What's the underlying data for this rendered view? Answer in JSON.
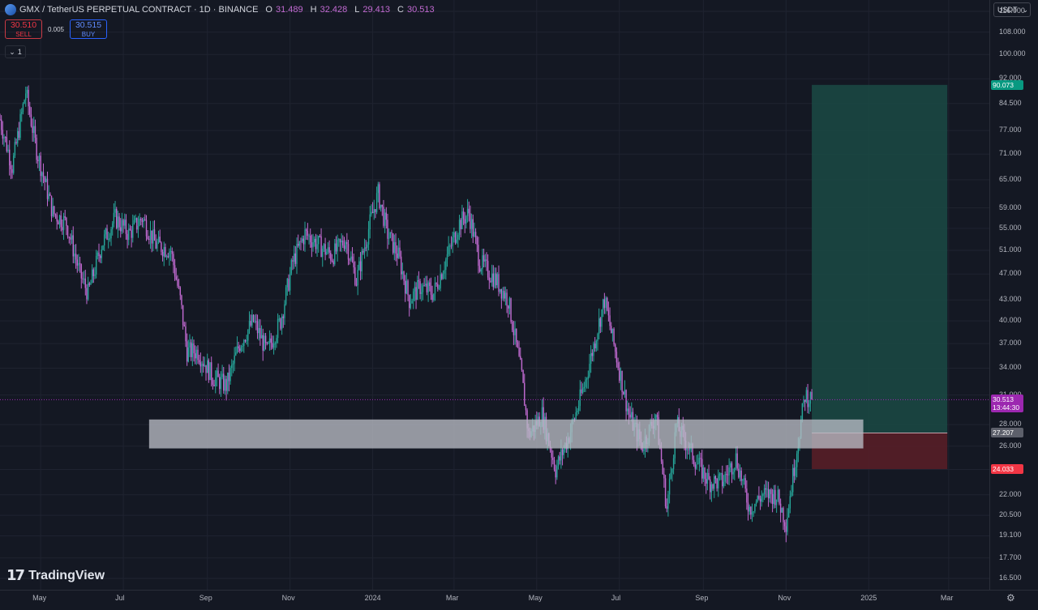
{
  "header": {
    "symbol": "GMX / TetherUS PERPETUAL CONTRACT · 1D · BINANCE",
    "o_label": "O",
    "o": "31.489",
    "h_label": "H",
    "h": "32.428",
    "l_label": "L",
    "l": "29.413",
    "c_label": "C",
    "c": "30.513"
  },
  "trade": {
    "sell_price": "30.510",
    "sell_label": "SELL",
    "spread": "0.005",
    "buy_price": "30.515",
    "buy_label": "BUY"
  },
  "layers": {
    "count": "1"
  },
  "currency": {
    "label": "USDT",
    "icon": "chevron-down-icon"
  },
  "colors": {
    "background": "#141823",
    "up": "#26a69a",
    "down": "#c16ad1",
    "profit_zone": "#1a4a44",
    "loss_zone": "#5a1e27",
    "target_tag": "#089981",
    "stop_tag": "#f23645",
    "last_tag": "#9c27b0"
  },
  "price_axis": [
    "116.000",
    "108.000",
    "100.000",
    "92.000",
    "84.500",
    "77.000",
    "71.000",
    "65.000",
    "59.000",
    "55.000",
    "51.000",
    "47.000",
    "43.000",
    "40.000",
    "37.000",
    "34.000",
    "31.000",
    "28.000",
    "26.000",
    "24.000",
    "22.000",
    "20.500",
    "19.100",
    "17.700",
    "16.500"
  ],
  "time_axis": [
    "May",
    "Jul",
    "Sep",
    "Nov",
    "2024",
    "Mar",
    "May",
    "Jul",
    "Sep",
    "Nov",
    "2025",
    "Mar"
  ],
  "price_tags": {
    "target": "90.073",
    "last": "30.513",
    "countdown": "13:44:30",
    "entry": "27.207",
    "stop": "24.033"
  },
  "logo": {
    "text": "TradingView"
  },
  "chart_data": {
    "type": "candlestick",
    "scale": "log",
    "ylim": [
      16.5,
      116
    ],
    "x_range": [
      "2023-04-01",
      "2025-03-31"
    ],
    "last_price": 30.513,
    "support_zone": {
      "from": "2023-07-20",
      "to": "2024-12-28",
      "low": 25.8,
      "high": 28.5
    },
    "long_position": {
      "start": "2024-11-20",
      "end": "2025-02-28",
      "entry": 27.207,
      "target": 90.073,
      "stop": 24.033
    },
    "anchors": [
      [
        "2023-04-01",
        80
      ],
      [
        "2023-04-10",
        68
      ],
      [
        "2023-04-20",
        88
      ],
      [
        "2023-04-28",
        72
      ],
      [
        "2023-05-10",
        58
      ],
      [
        "2023-05-20",
        56
      ],
      [
        "2023-05-30",
        47
      ],
      [
        "2023-06-05",
        44
      ],
      [
        "2023-06-15",
        52
      ],
      [
        "2023-06-25",
        57
      ],
      [
        "2023-07-05",
        54
      ],
      [
        "2023-07-15",
        57
      ],
      [
        "2023-07-25",
        52
      ],
      [
        "2023-08-05",
        51
      ],
      [
        "2023-08-12",
        43
      ],
      [
        "2023-08-17",
        36
      ],
      [
        "2023-08-25",
        36
      ],
      [
        "2023-09-05",
        33
      ],
      [
        "2023-09-15",
        32
      ],
      [
        "2023-09-25",
        37
      ],
      [
        "2023-10-05",
        40
      ],
      [
        "2023-10-15",
        36
      ],
      [
        "2023-10-25",
        40
      ],
      [
        "2023-11-03",
        49
      ],
      [
        "2023-11-12",
        54
      ],
      [
        "2023-11-22",
        52
      ],
      [
        "2023-12-02",
        50
      ],
      [
        "2023-12-12",
        53
      ],
      [
        "2023-12-20",
        46
      ],
      [
        "2023-12-30",
        56
      ],
      [
        "2024-01-05",
        62
      ],
      [
        "2024-01-12",
        54
      ],
      [
        "2024-01-20",
        50
      ],
      [
        "2024-01-28",
        43
      ],
      [
        "2024-02-05",
        45
      ],
      [
        "2024-02-15",
        44
      ],
      [
        "2024-02-25",
        50
      ],
      [
        "2024-03-05",
        56
      ],
      [
        "2024-03-12",
        58
      ],
      [
        "2024-03-20",
        49
      ],
      [
        "2024-04-01",
        46
      ],
      [
        "2024-04-10",
        43
      ],
      [
        "2024-04-20",
        33
      ],
      [
        "2024-04-25",
        27
      ],
      [
        "2024-05-05",
        29
      ],
      [
        "2024-05-15",
        24
      ],
      [
        "2024-05-25",
        27
      ],
      [
        "2024-06-05",
        32
      ],
      [
        "2024-06-15",
        39
      ],
      [
        "2024-06-20",
        43
      ],
      [
        "2024-06-28",
        36
      ],
      [
        "2024-07-08",
        29
      ],
      [
        "2024-07-18",
        26
      ],
      [
        "2024-07-28",
        29
      ],
      [
        "2024-08-05",
        21
      ],
      [
        "2024-08-12",
        28
      ],
      [
        "2024-08-25",
        25
      ],
      [
        "2024-09-05",
        23
      ],
      [
        "2024-09-15",
        23
      ],
      [
        "2024-09-25",
        25
      ],
      [
        "2024-10-05",
        21
      ],
      [
        "2024-10-15",
        22
      ],
      [
        "2024-10-25",
        22
      ],
      [
        "2024-11-01",
        20
      ],
      [
        "2024-11-08",
        25
      ],
      [
        "2024-11-15",
        31
      ],
      [
        "2024-11-20",
        30.513
      ]
    ]
  }
}
